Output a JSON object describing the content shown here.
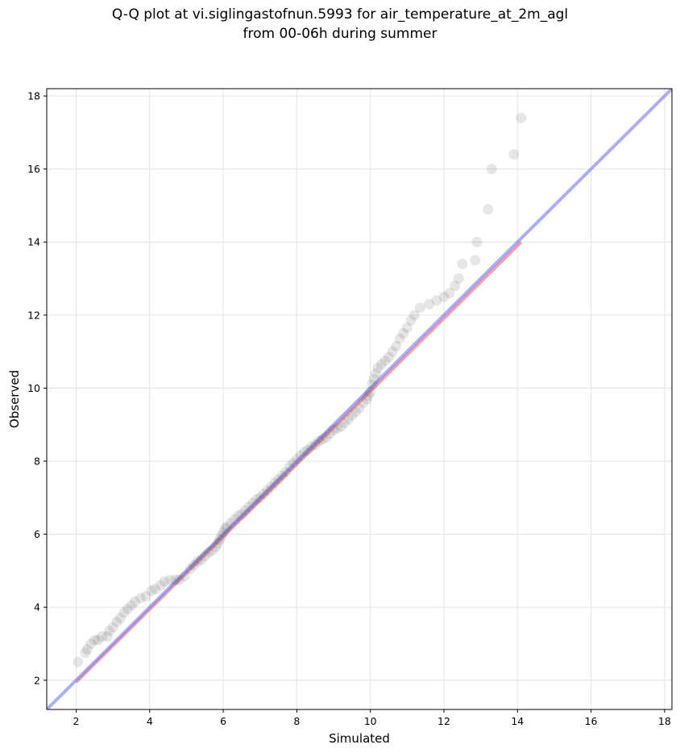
{
  "chart_data": {
    "type": "scatter",
    "title_line1": "Q-Q plot at vi.siglingastofnun.5993 for air_temperature_at_2m_agl",
    "title_line2": "from 00-06h during summer",
    "xlabel": "Simulated",
    "ylabel": "Observed",
    "xlim": [
      1.2,
      18.2
    ],
    "ylim": [
      1.2,
      18.2
    ],
    "xticks": [
      2,
      4,
      6,
      8,
      10,
      12,
      14,
      16,
      18
    ],
    "yticks": [
      2,
      4,
      6,
      8,
      10,
      12,
      14,
      16,
      18
    ],
    "grid": true,
    "identity_line": {
      "from": [
        1.2,
        1.2
      ],
      "to": [
        18.2,
        18.2
      ],
      "color": "#7b83f0"
    },
    "fit_line": {
      "from": [
        2.0,
        1.95
      ],
      "to": [
        14.1,
        14.0
      ],
      "color": "#f48a96"
    },
    "point_color": "#333333",
    "points": [
      [
        2.05,
        2.5
      ],
      [
        2.25,
        2.75
      ],
      [
        2.3,
        2.85
      ],
      [
        2.4,
        3.0
      ],
      [
        2.5,
        3.1
      ],
      [
        2.6,
        3.1
      ],
      [
        2.7,
        3.2
      ],
      [
        2.85,
        3.2
      ],
      [
        2.9,
        3.35
      ],
      [
        3.0,
        3.45
      ],
      [
        3.1,
        3.6
      ],
      [
        3.2,
        3.7
      ],
      [
        3.3,
        3.85
      ],
      [
        3.4,
        3.95
      ],
      [
        3.5,
        4.05
      ],
      [
        3.6,
        4.15
      ],
      [
        3.75,
        4.25
      ],
      [
        3.9,
        4.3
      ],
      [
        4.05,
        4.45
      ],
      [
        4.15,
        4.5
      ],
      [
        4.3,
        4.6
      ],
      [
        4.4,
        4.7
      ],
      [
        4.55,
        4.75
      ],
      [
        4.7,
        4.75
      ],
      [
        4.8,
        4.75
      ],
      [
        4.95,
        4.85
      ],
      [
        5.1,
        5.05
      ],
      [
        5.2,
        5.15
      ],
      [
        5.3,
        5.25
      ],
      [
        5.4,
        5.3
      ],
      [
        5.5,
        5.4
      ],
      [
        5.6,
        5.5
      ],
      [
        5.7,
        5.55
      ],
      [
        5.8,
        5.65
      ],
      [
        5.85,
        5.75
      ],
      [
        5.9,
        5.85
      ],
      [
        5.95,
        5.95
      ],
      [
        6.0,
        6.05
      ],
      [
        6.05,
        6.15
      ],
      [
        6.1,
        6.2
      ],
      [
        6.2,
        6.3
      ],
      [
        6.3,
        6.4
      ],
      [
        6.4,
        6.5
      ],
      [
        6.5,
        6.55
      ],
      [
        6.6,
        6.65
      ],
      [
        6.7,
        6.75
      ],
      [
        6.8,
        6.85
      ],
      [
        6.9,
        6.95
      ],
      [
        7.0,
        7.0
      ],
      [
        7.1,
        7.1
      ],
      [
        7.2,
        7.2
      ],
      [
        7.3,
        7.3
      ],
      [
        7.4,
        7.4
      ],
      [
        7.5,
        7.5
      ],
      [
        7.6,
        7.6
      ],
      [
        7.7,
        7.7
      ],
      [
        7.8,
        7.85
      ],
      [
        7.9,
        7.95
      ],
      [
        8.0,
        8.05
      ],
      [
        8.1,
        8.15
      ],
      [
        8.2,
        8.25
      ],
      [
        8.3,
        8.3
      ],
      [
        8.4,
        8.4
      ],
      [
        8.5,
        8.45
      ],
      [
        8.6,
        8.55
      ],
      [
        8.7,
        8.6
      ],
      [
        8.8,
        8.65
      ],
      [
        8.9,
        8.75
      ],
      [
        9.0,
        8.85
      ],
      [
        9.1,
        8.9
      ],
      [
        9.2,
        8.95
      ],
      [
        9.3,
        9.05
      ],
      [
        9.4,
        9.15
      ],
      [
        9.5,
        9.25
      ],
      [
        9.6,
        9.35
      ],
      [
        9.7,
        9.45
      ],
      [
        9.8,
        9.6
      ],
      [
        9.9,
        9.7
      ],
      [
        9.95,
        9.8
      ],
      [
        10.0,
        9.9
      ],
      [
        10.05,
        10.1
      ],
      [
        10.1,
        10.25
      ],
      [
        10.15,
        10.4
      ],
      [
        10.2,
        10.55
      ],
      [
        10.3,
        10.65
      ],
      [
        10.4,
        10.75
      ],
      [
        10.5,
        10.85
      ],
      [
        10.6,
        11.0
      ],
      [
        10.7,
        11.15
      ],
      [
        10.8,
        11.35
      ],
      [
        10.9,
        11.5
      ],
      [
        11.0,
        11.65
      ],
      [
        11.1,
        11.85
      ],
      [
        11.2,
        12.0
      ],
      [
        11.35,
        12.2
      ],
      [
        11.6,
        12.3
      ],
      [
        11.8,
        12.4
      ],
      [
        12.0,
        12.5
      ],
      [
        12.15,
        12.6
      ],
      [
        12.3,
        12.8
      ],
      [
        12.4,
        13.0
      ],
      [
        12.5,
        13.4
      ],
      [
        12.85,
        13.5
      ],
      [
        12.9,
        14.0
      ],
      [
        13.2,
        14.9
      ],
      [
        13.3,
        16.0
      ],
      [
        13.9,
        16.4
      ],
      [
        14.1,
        17.4
      ]
    ]
  }
}
